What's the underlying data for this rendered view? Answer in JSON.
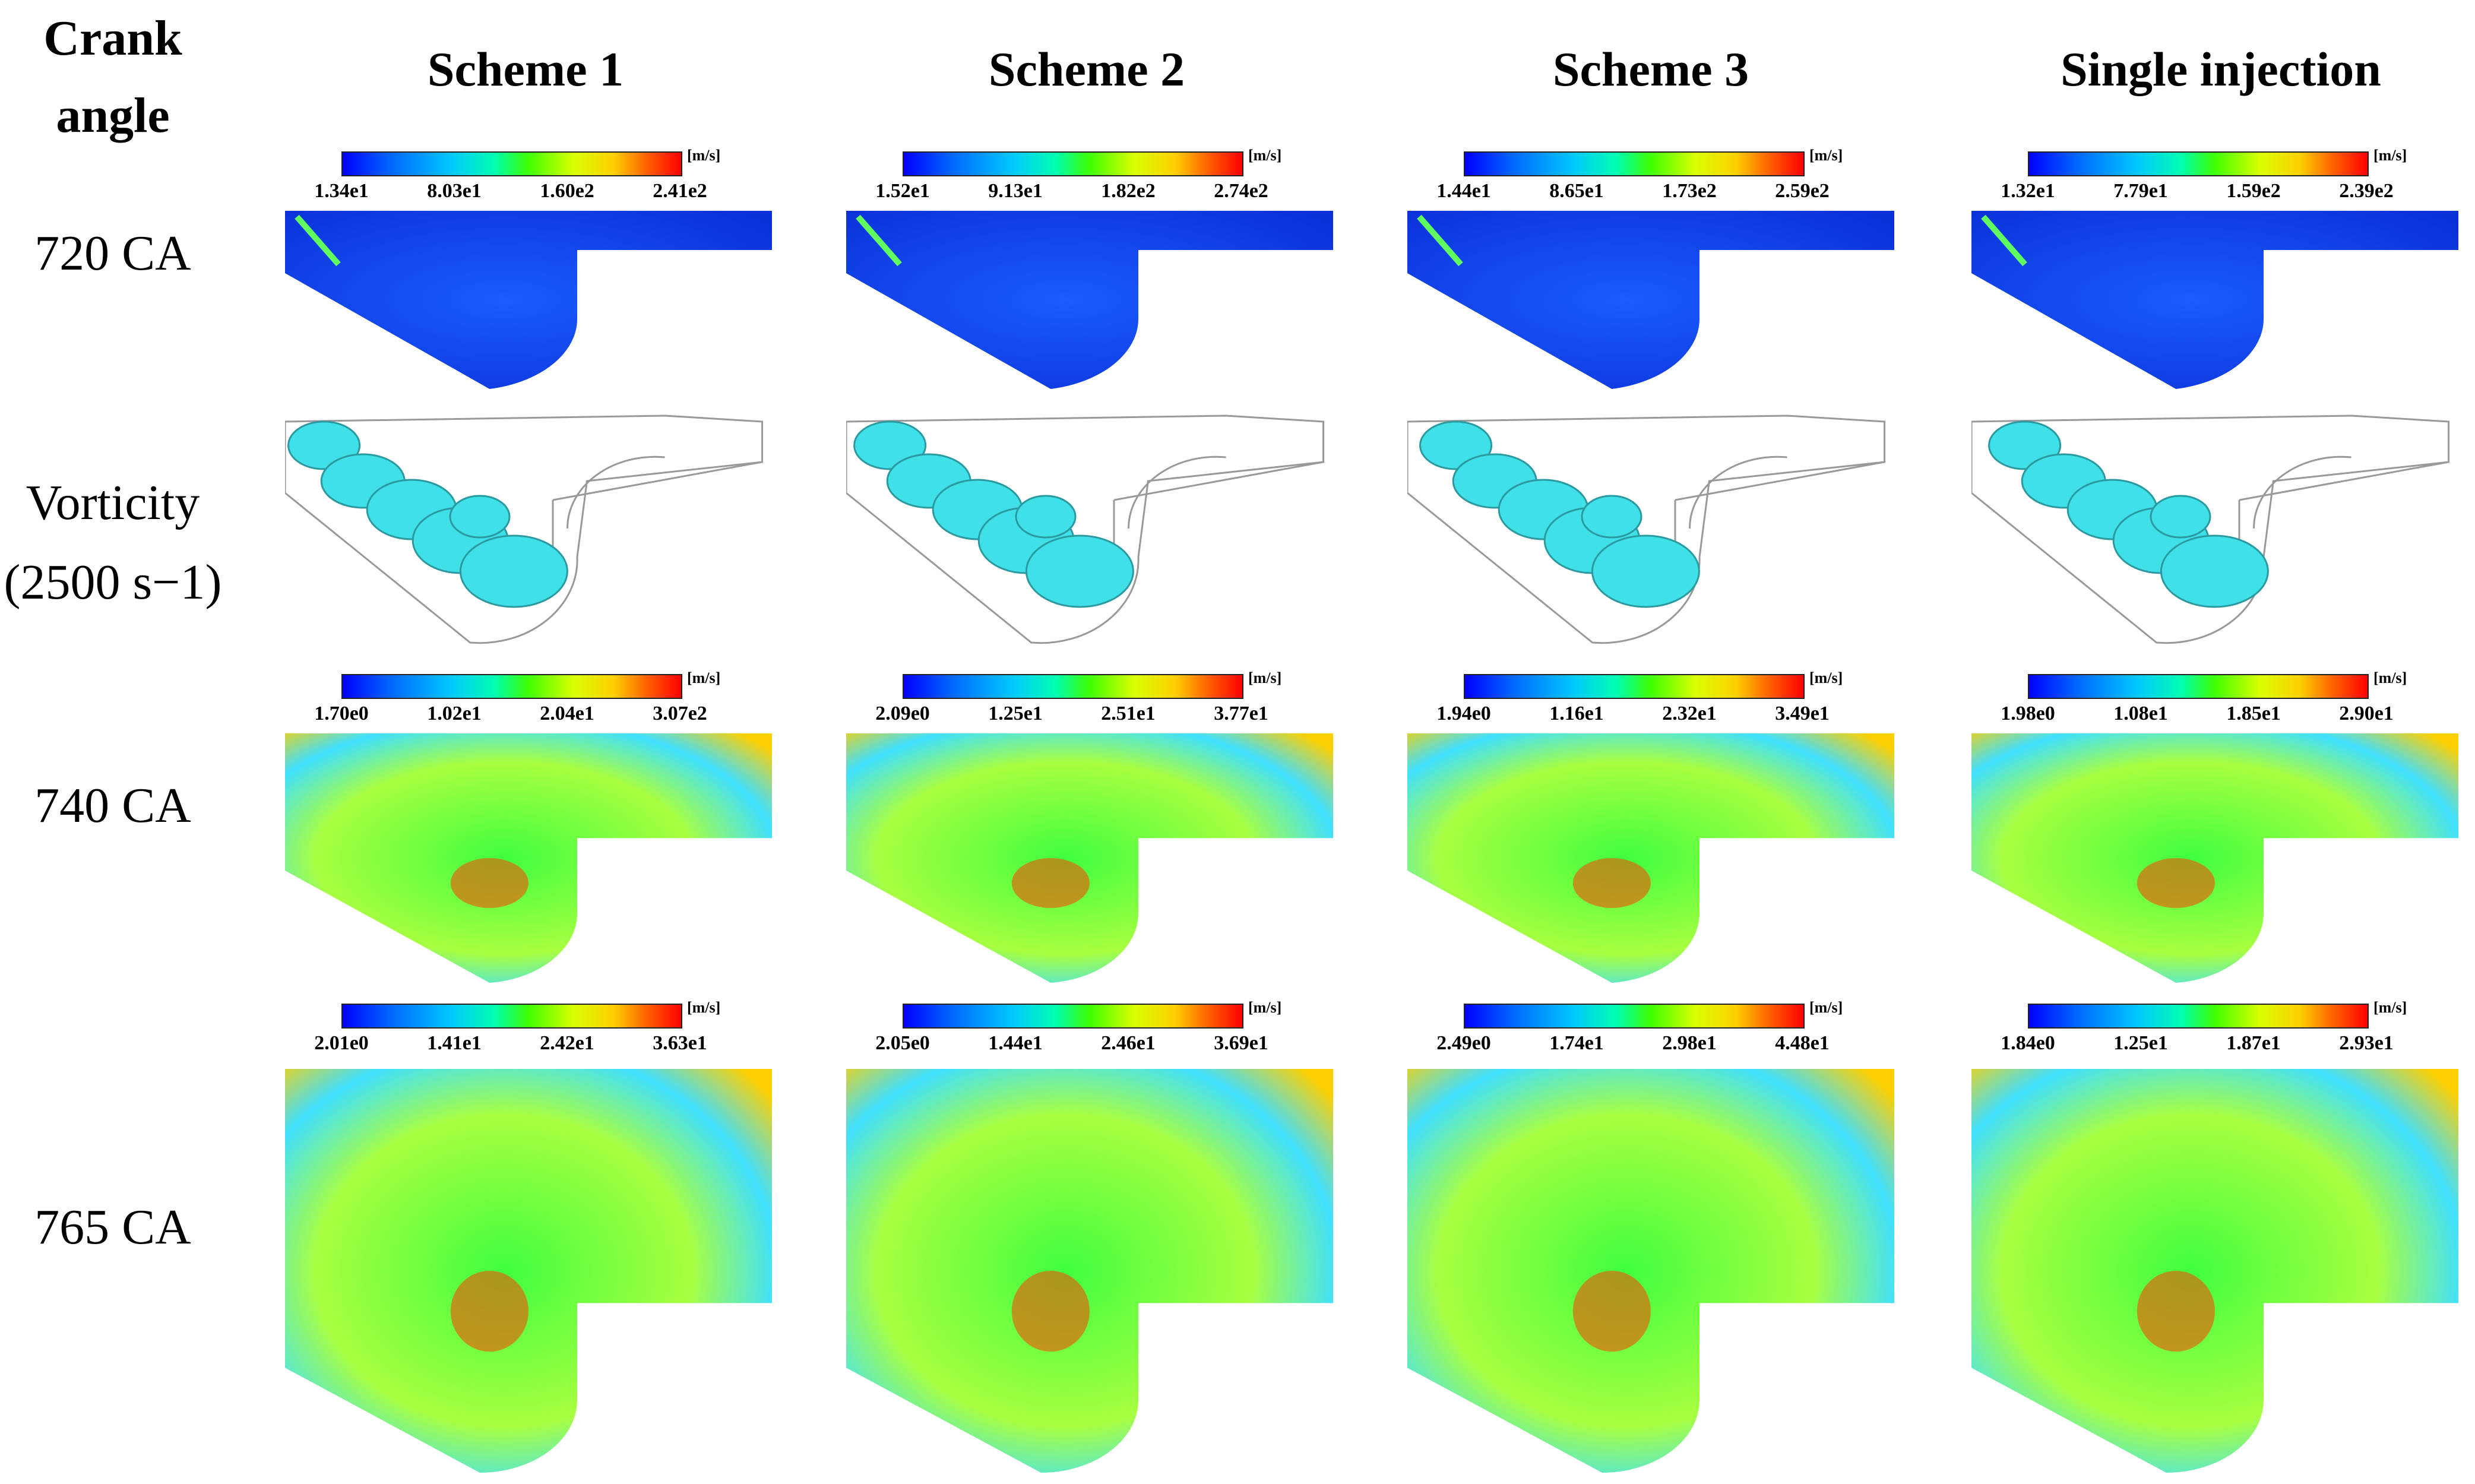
{
  "header": {
    "corner": [
      "Crank",
      "angle"
    ],
    "columns": [
      "Scheme 1",
      "Scheme 2",
      "Scheme 3",
      "Single injection"
    ]
  },
  "rows": [
    {
      "label": "720 CA",
      "field": "velocity"
    },
    {
      "label": "Vorticity",
      "label2": "(2500 s−1)",
      "field": "vorticity"
    },
    {
      "label": "740 CA",
      "field": "velocity"
    },
    {
      "label": "765 CA",
      "field": "velocity"
    }
  ],
  "colorbar_unit": "[m/s]",
  "colorbars": [
    [
      [
        "1.34e1",
        "8.03e1",
        "1.60e2",
        "2.41e2"
      ],
      [
        "1.52e1",
        "9.13e1",
        "1.82e2",
        "2.74e2"
      ],
      [
        "1.44e1",
        "8.65e1",
        "1.73e2",
        "2.59e2"
      ],
      [
        "1.32e1",
        "7.79e1",
        "1.59e2",
        "2.39e2"
      ]
    ],
    null,
    [
      [
        "1.70e0",
        "1.02e1",
        "2.04e1",
        "3.07e2"
      ],
      [
        "2.09e0",
        "1.25e1",
        "2.51e1",
        "3.77e1"
      ],
      [
        "1.94e0",
        "1.16e1",
        "2.32e1",
        "3.49e1"
      ],
      [
        "1.98e0",
        "1.08e1",
        "1.85e1",
        "2.90e1"
      ]
    ],
    [
      [
        "2.01e0",
        "1.41e1",
        "2.42e1",
        "3.63e1"
      ],
      [
        "2.05e0",
        "1.44e1",
        "2.46e1",
        "3.69e1"
      ],
      [
        "2.49e0",
        "1.74e1",
        "2.98e1",
        "4.48e1"
      ],
      [
        "1.84e0",
        "1.25e1",
        "1.87e1",
        "2.93e1"
      ]
    ]
  ],
  "colors": {
    "velocity_low": "#1040f0",
    "velocity_mid": "#40ff40",
    "velocity_high": "#ff4000",
    "vorticity_iso": "#40e0e8",
    "vorticity_edge": "#2a9aa0",
    "outline": "#999999"
  }
}
